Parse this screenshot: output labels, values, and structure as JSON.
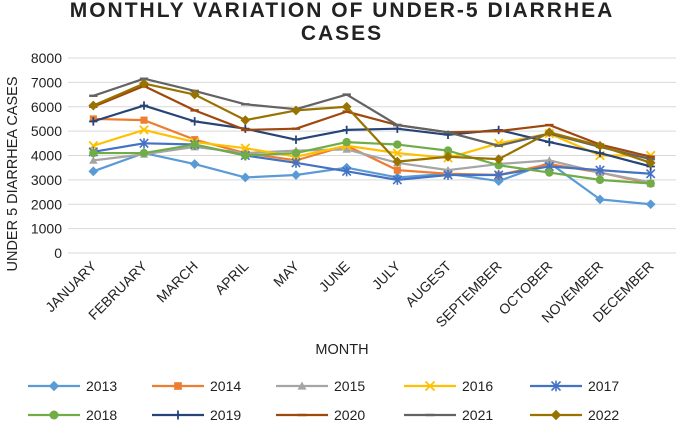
{
  "chart_data": {
    "type": "line",
    "title_lines": [
      "MONTHLY VARIATION OF UNDER-5 DIARRHEA",
      "CASES"
    ],
    "xlabel": "MONTH",
    "ylabel": "UNDER 5 DIARRHEA CASES",
    "ylim": [
      0,
      8000
    ],
    "yticks": [
      "0",
      "1000",
      "2000",
      "3000",
      "4000",
      "5000",
      "6000",
      "7000",
      "8000"
    ],
    "categories": [
      "JANUARY",
      "FEBRUARY",
      "MARCH",
      "APRIL",
      "MAY",
      "JUNE",
      "JULY",
      "AUGEST",
      "SEPTEMBER",
      "OCTOBER",
      "NOVEMBER",
      "DECEMBER"
    ],
    "grid": "horizontal",
    "legend": "bottom",
    "series": [
      {
        "name": "2013",
        "color": "#5b9bd5",
        "marker": "diamond",
        "values": [
          3350,
          4100,
          3650,
          3100,
          3200,
          3500,
          3100,
          3250,
          2950,
          3700,
          2200,
          2000
        ]
      },
      {
        "name": "2014",
        "color": "#ed7d31",
        "marker": "square",
        "values": [
          5500,
          5450,
          4650,
          4100,
          3800,
          4400,
          3400,
          3250,
          3200,
          3650,
          3300,
          2850
        ]
      },
      {
        "name": "2015",
        "color": "#a5a5a5",
        "marker": "triangle",
        "values": [
          3800,
          4050,
          4350,
          4100,
          4200,
          4250,
          3700,
          3400,
          3650,
          3800,
          3300,
          2900
        ]
      },
      {
        "name": "2016",
        "color": "#ffc000",
        "marker": "x",
        "values": [
          4400,
          5050,
          4550,
          4300,
          3950,
          4400,
          4100,
          3900,
          4500,
          4900,
          4000,
          4000
        ]
      },
      {
        "name": "2017",
        "color": "#4472c4",
        "marker": "asterisk",
        "values": [
          4150,
          4500,
          4450,
          4000,
          3700,
          3350,
          3000,
          3200,
          3200,
          3550,
          3400,
          3250
        ]
      },
      {
        "name": "2018",
        "color": "#70ad47",
        "marker": "circle",
        "values": [
          4100,
          4100,
          4450,
          4000,
          4100,
          4550,
          4450,
          4200,
          3600,
          3300,
          3000,
          2850
        ]
      },
      {
        "name": "2019",
        "color": "#264478",
        "marker": "plus",
        "values": [
          5400,
          6050,
          5400,
          5100,
          4650,
          5050,
          5100,
          4850,
          5050,
          4550,
          4100,
          3550
        ]
      },
      {
        "name": "2020",
        "color": "#9e480e",
        "marker": "dash",
        "values": [
          6000,
          6850,
          5850,
          5050,
          5100,
          5800,
          5250,
          4950,
          5000,
          5250,
          4450,
          3950
        ]
      },
      {
        "name": "2021",
        "color": "#636363",
        "marker": "dash",
        "values": [
          6450,
          7150,
          6650,
          6100,
          5900,
          6500,
          5250,
          4950,
          4400,
          4900,
          4350,
          3850
        ]
      },
      {
        "name": "2022",
        "color": "#997300",
        "marker": "diamond",
        "values": [
          6050,
          6950,
          6500,
          5450,
          5850,
          6000,
          3750,
          3950,
          3850,
          4950,
          4400,
          3700
        ]
      }
    ]
  }
}
